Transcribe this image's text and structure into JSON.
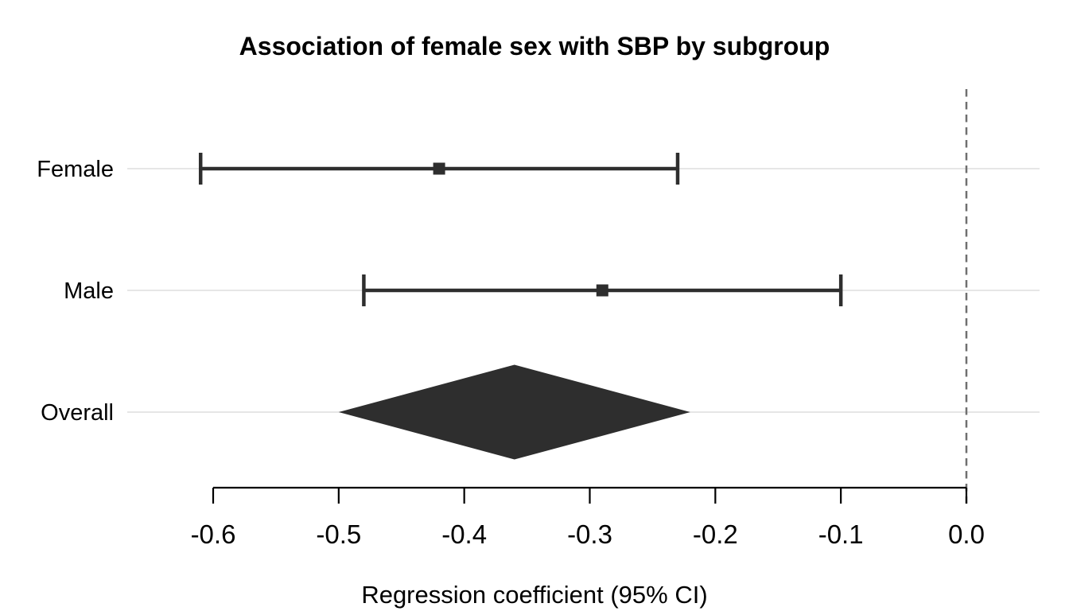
{
  "chart_data": {
    "type": "forest",
    "title": "Association of female sex with SBP by subgroup",
    "xlabel": "Regression coefficient (95% CI)",
    "x_ticks": [
      -0.6,
      -0.5,
      -0.4,
      -0.3,
      -0.2,
      -0.1,
      0.0
    ],
    "x_tick_labels": [
      "-0.6",
      "-0.5",
      "-0.4",
      "-0.3",
      "-0.2",
      "-0.1",
      "0.0"
    ],
    "xlim": [
      -0.668,
      0.06
    ],
    "reference_line": 0.0,
    "grid": "horizontal-per-row",
    "legend": "none",
    "rows": [
      {
        "label": "Female",
        "estimate": -0.42,
        "ci_lower": -0.61,
        "ci_upper": -0.23,
        "marker": "square"
      },
      {
        "label": "Male",
        "estimate": -0.29,
        "ci_lower": -0.48,
        "ci_upper": -0.1,
        "marker": "square"
      },
      {
        "label": "Overall",
        "estimate": -0.36,
        "ci_lower": -0.5,
        "ci_upper": -0.22,
        "marker": "diamond"
      }
    ],
    "colors": {
      "marker": "#2e2e2e",
      "axis": "#000000",
      "text": "#000000",
      "gridline": "#e6e6e6",
      "reference": "#6f6f6f",
      "background": "#ffffff"
    }
  }
}
